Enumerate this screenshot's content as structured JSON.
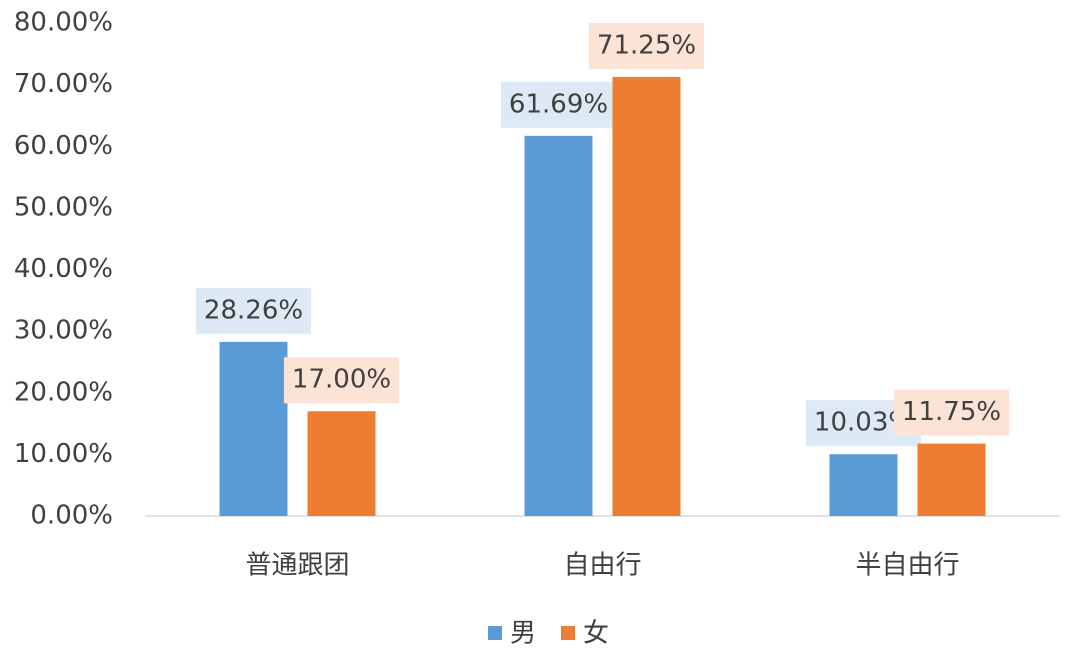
{
  "chart_data": {
    "type": "bar",
    "categories": [
      "普通跟团",
      "自由行",
      "半自由行"
    ],
    "series": [
      {
        "name": "男",
        "color": "#5b9bd5",
        "label_bg": "#dde9f5",
        "values": [
          28.26,
          61.69,
          10.03
        ],
        "value_labels": [
          "28.26%",
          "61.69%",
          "10.03%"
        ]
      },
      {
        "name": "女",
        "color": "#ed7d31",
        "label_bg": "#fbe3d6",
        "values": [
          17.0,
          71.25,
          11.75
        ],
        "value_labels": [
          "17.00%",
          "71.25%",
          "11.75%"
        ]
      }
    ],
    "ylim": [
      0,
      80
    ],
    "yticks": [
      {
        "value": 0,
        "label": "0.00%"
      },
      {
        "value": 10,
        "label": "10.00%"
      },
      {
        "value": 20,
        "label": "20.00%"
      },
      {
        "value": 30,
        "label": "30.00%"
      },
      {
        "value": 40,
        "label": "40.00%"
      },
      {
        "value": 50,
        "label": "50.00%"
      },
      {
        "value": 60,
        "label": "60.00%"
      },
      {
        "value": 70,
        "label": "70.00%"
      },
      {
        "value": 80,
        "label": "80.00%"
      }
    ],
    "grid": false,
    "legend": "bottom"
  }
}
